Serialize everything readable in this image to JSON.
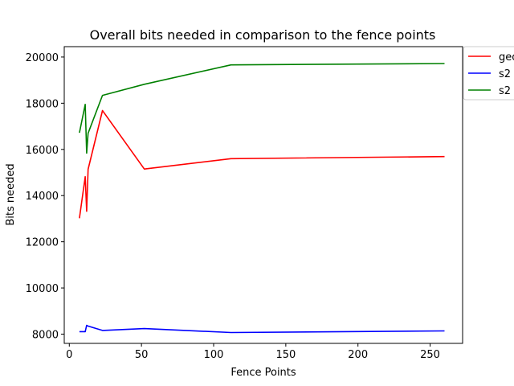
{
  "chart_data": {
    "type": "line",
    "title": "Overall bits needed in comparison to the fence points",
    "xlabel": "Fence Points",
    "ylabel": "Bits needed",
    "xlim": [
      -3.5,
      272.5
    ],
    "ylim": [
      7600,
      20450
    ],
    "xticks": [
      0,
      50,
      100,
      150,
      200,
      250
    ],
    "yticks": [
      8000,
      10000,
      12000,
      14000,
      16000,
      18000,
      20000
    ],
    "grid": false,
    "legend_position": "upper-right-outside",
    "series": [
      {
        "name": "geo",
        "color": "#ff0000",
        "x": [
          7,
          11,
          12,
          13,
          23,
          52,
          112,
          260
        ],
        "y": [
          13020,
          14820,
          13320,
          15140,
          17680,
          15150,
          15600,
          15690
        ]
      },
      {
        "name": "s2",
        "color": "#0000ff",
        "x": [
          7,
          11,
          12,
          13,
          23,
          52,
          112,
          260
        ],
        "y": [
          8110,
          8110,
          8380,
          8350,
          8160,
          8240,
          8070,
          8140
        ]
      },
      {
        "name": "s2",
        "color": "#008000",
        "x": [
          7,
          11,
          12,
          13,
          23,
          52,
          112,
          260
        ],
        "y": [
          16720,
          17950,
          15840,
          16700,
          18340,
          18820,
          19660,
          19720
        ]
      }
    ]
  }
}
